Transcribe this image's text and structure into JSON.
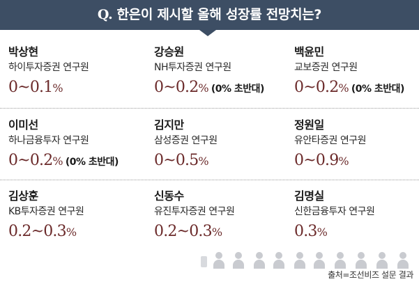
{
  "header": {
    "q": "Q.",
    "title": "한은이 제시할 올해 성장률 전망치는?"
  },
  "analysts": [
    {
      "name": "박상현",
      "org": "하이투자증권 연구원",
      "range": "0~0.1",
      "pct": "%",
      "note": ""
    },
    {
      "name": "강승원",
      "org": "NH투자증권 연구원",
      "range": "0~0.2",
      "pct": "%",
      "note": "(0% 초반대)"
    },
    {
      "name": "백윤민",
      "org": "교보증권 연구원",
      "range": "0~0.2",
      "pct": "%",
      "note": "(0% 초반대)"
    },
    {
      "name": "이미선",
      "org": "하나금융투자 연구원",
      "range": "0~0.2",
      "pct": "%",
      "note": "(0% 초반대)"
    },
    {
      "name": "김지만",
      "org": "삼성증권 연구원",
      "range": "0~0.5",
      "pct": "%",
      "note": ""
    },
    {
      "name": "정원일",
      "org": "유안타증권 연구원",
      "range": "0~0.9",
      "pct": "%",
      "note": ""
    },
    {
      "name": "김상훈",
      "org": "KB투자증권 연구원",
      "range": "0.2~0.3",
      "pct": "%",
      "note": ""
    },
    {
      "name": "신동수",
      "org": "유진투자증권 연구원",
      "range": "0.2~0.3",
      "pct": "%",
      "note": ""
    },
    {
      "name": "김명실",
      "org": "신한금융투자 연구원",
      "range": "0.3",
      "pct": "%",
      "note": ""
    }
  ],
  "source": "출처=조선비즈 설문 결과",
  "icons": {
    "crowd": "crowd-illustration-icon",
    "mic": "microphone-icon"
  },
  "colors": {
    "header_bg": "#3d4e64",
    "value": "#6b2a2a"
  }
}
